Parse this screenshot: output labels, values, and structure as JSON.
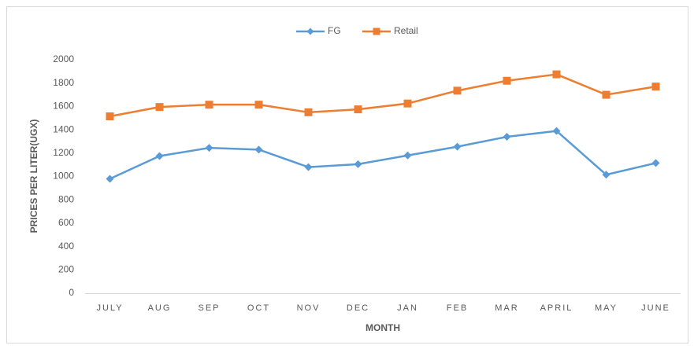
{
  "chart_data": {
    "type": "line",
    "x_label": "MONTH",
    "y_label": "PRICES PER LITER(UGX)",
    "categories": [
      "JULY",
      "AUG",
      "SEP",
      "OCT",
      "NOV",
      "DEC",
      "JAN",
      "FEB",
      "MAR",
      "APRIL",
      "MAY",
      "JUNE"
    ],
    "series": [
      {
        "name": "FG",
        "color": "#5b9bd5",
        "marker": "diamond",
        "values": [
          980,
          1175,
          1245,
          1230,
          1080,
          1105,
          1180,
          1255,
          1340,
          1390,
          1015,
          1115
        ]
      },
      {
        "name": "Retail",
        "color": "#ed7d31",
        "marker": "square",
        "values": [
          1515,
          1595,
          1615,
          1615,
          1550,
          1575,
          1625,
          1735,
          1820,
          1875,
          1700,
          1770
        ]
      }
    ],
    "ylim": [
      0,
      2000
    ],
    "yticks": [
      0,
      200,
      400,
      600,
      800,
      1000,
      1200,
      1400,
      1600,
      1800,
      2000
    ],
    "grid": false,
    "legend": "top"
  }
}
